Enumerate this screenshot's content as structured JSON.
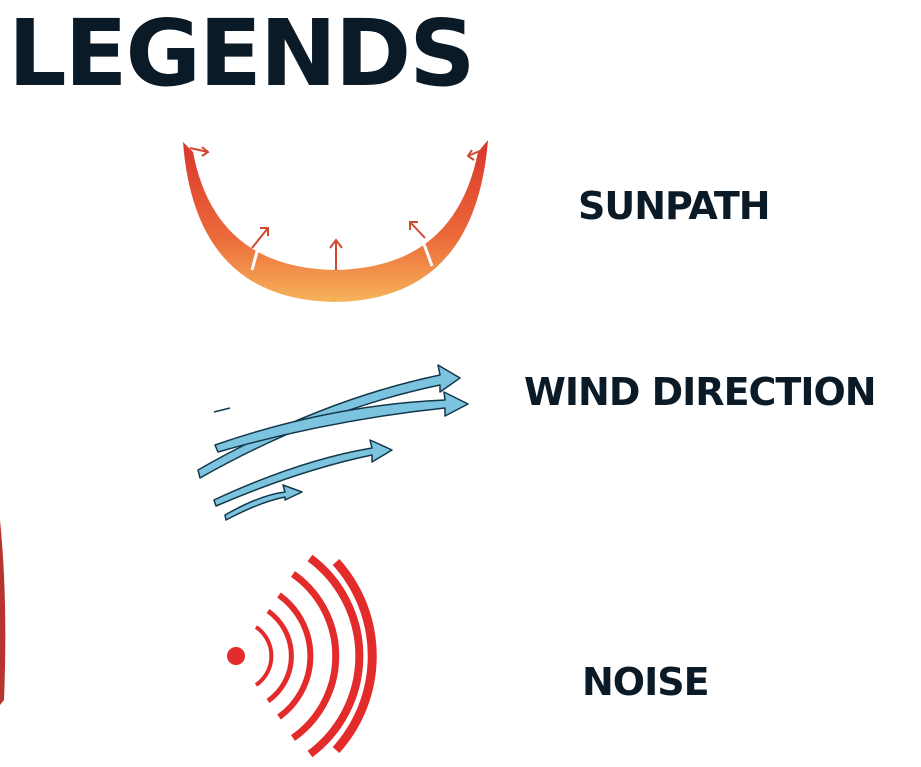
{
  "title": "LEGENDS",
  "items": [
    {
      "label": "SUNPATH"
    },
    {
      "label": "WIND DIRECTION"
    },
    {
      "label": "NOISE"
    }
  ]
}
